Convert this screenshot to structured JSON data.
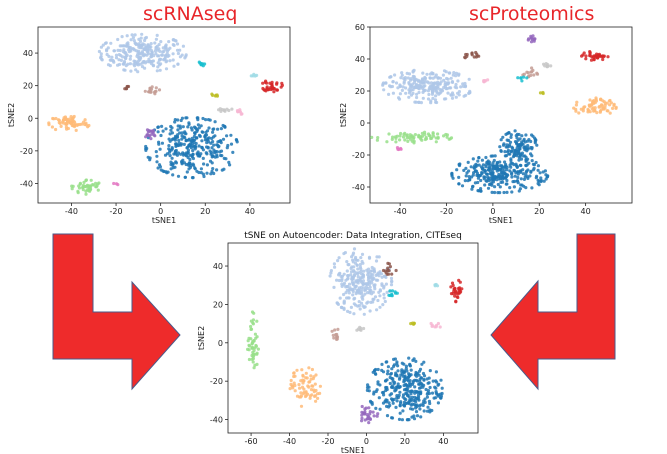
{
  "headings": {
    "left": "scRNAseq",
    "right": "scProteomics"
  },
  "chart_data": [
    {
      "type": "scatter",
      "title": "",
      "xlabel": "tSNE1",
      "ylabel": "tSNE2",
      "xlim": [
        -55,
        58
      ],
      "ylim": [
        -52,
        56
      ],
      "xticks": [
        -40,
        -20,
        0,
        20,
        40
      ],
      "yticks": [
        -40,
        -20,
        0,
        20,
        40
      ],
      "clusters": [
        {
          "color": "#aec7e8",
          "cx": -8,
          "cy": 40,
          "rx": 17,
          "ry": 10,
          "n": 260
        },
        {
          "color": "#1f77b4",
          "cx": 14,
          "cy": -18,
          "rx": 18,
          "ry": 16,
          "n": 320
        },
        {
          "color": "#ffbb78",
          "cx": -41,
          "cy": -3,
          "rx": 8,
          "ry": 4.5,
          "n": 70
        },
        {
          "color": "#98df8a",
          "cx": -33,
          "cy": -42,
          "rx": 6,
          "ry": 4,
          "n": 45
        },
        {
          "color": "#d62728",
          "cx": 50,
          "cy": 20,
          "rx": 4,
          "ry": 3.5,
          "n": 35
        },
        {
          "color": "#9467bd",
          "cx": -5,
          "cy": -10,
          "rx": 3,
          "ry": 4,
          "n": 18
        },
        {
          "color": "#c49c94",
          "cx": -5,
          "cy": 17,
          "rx": 4,
          "ry": 2,
          "n": 16
        },
        {
          "color": "#17becf",
          "cx": 18,
          "cy": 33,
          "rx": 1.5,
          "ry": 1.5,
          "n": 8
        },
        {
          "color": "#bcbd22",
          "cx": 24,
          "cy": 14,
          "rx": 1.5,
          "ry": 1,
          "n": 6
        },
        {
          "color": "#f7b6d2",
          "cx": 35,
          "cy": 4,
          "rx": 2,
          "ry": 1.5,
          "n": 8
        },
        {
          "color": "#c7c7c7",
          "cx": 29,
          "cy": 5,
          "rx": 3,
          "ry": 1,
          "n": 10
        },
        {
          "color": "#8c564b",
          "cx": -16,
          "cy": 19,
          "rx": 1.5,
          "ry": 1,
          "n": 6
        },
        {
          "color": "#9edae5",
          "cx": 42,
          "cy": 26,
          "rx": 2,
          "ry": 1,
          "n": 5
        },
        {
          "color": "#e377c2",
          "cx": -20,
          "cy": -40,
          "rx": 1,
          "ry": 1,
          "n": 3
        }
      ]
    },
    {
      "type": "scatter",
      "title": "",
      "xlabel": "tSNE1",
      "ylabel": "tSNE2",
      "xlim": [
        -53,
        60
      ],
      "ylim": [
        -50,
        60
      ],
      "xticks": [
        -40,
        -20,
        0,
        20,
        40
      ],
      "yticks": [
        -40,
        -20,
        0,
        20,
        40,
        60
      ],
      "clusters": [
        {
          "color": "#aec7e8",
          "cx": -28,
          "cy": 23,
          "rx": 17,
          "ry": 9,
          "n": 240
        },
        {
          "color": "#1f77b4",
          "cx": 3,
          "cy": -32,
          "rx": 18,
          "ry": 10,
          "n": 300
        },
        {
          "color": "#1f77b4",
          "cx": 11,
          "cy": -14,
          "rx": 7,
          "ry": 8,
          "n": 110
        },
        {
          "color": "#98df8a",
          "cx": -35,
          "cy": -9,
          "rx": 15,
          "ry": 3,
          "n": 70
        },
        {
          "color": "#ffbb78",
          "cx": 44,
          "cy": 10,
          "rx": 8,
          "ry": 5,
          "n": 70
        },
        {
          "color": "#d62728",
          "cx": 44,
          "cy": 42,
          "rx": 5,
          "ry": 2.5,
          "n": 35
        },
        {
          "color": "#8c564b",
          "cx": -9,
          "cy": 42,
          "rx": 3,
          "ry": 2,
          "n": 14
        },
        {
          "color": "#9467bd",
          "cx": 17,
          "cy": 53,
          "rx": 2,
          "ry": 2,
          "n": 12
        },
        {
          "color": "#c49c94",
          "cx": 16,
          "cy": 31,
          "rx": 3,
          "ry": 3,
          "n": 14
        },
        {
          "color": "#c7c7c7",
          "cx": 23,
          "cy": 36,
          "rx": 2,
          "ry": 1.5,
          "n": 8
        },
        {
          "color": "#17becf",
          "cx": 13,
          "cy": 28,
          "rx": 2,
          "ry": 1.5,
          "n": 6
        },
        {
          "color": "#f7b6d2",
          "cx": -2,
          "cy": 26,
          "rx": 2,
          "ry": 1.5,
          "n": 6
        },
        {
          "color": "#e377c2",
          "cx": -40,
          "cy": -16,
          "rx": 2,
          "ry": 1,
          "n": 5
        },
        {
          "color": "#bcbd22",
          "cx": 21,
          "cy": 19,
          "rx": 1,
          "ry": 1,
          "n": 3
        }
      ]
    },
    {
      "type": "scatter",
      "title": "tSNE on Autoencoder: Data Integration, CITEseq",
      "xlabel": "tSNE1",
      "ylabel": "tSNE2",
      "xlim": [
        -72,
        58
      ],
      "ylim": [
        -47,
        52
      ],
      "xticks": [
        -60,
        -40,
        -20,
        0,
        20,
        40
      ],
      "yticks": [
        -40,
        -20,
        0,
        20,
        40
      ],
      "clusters": [
        {
          "color": "#aec7e8",
          "cx": -3,
          "cy": 32,
          "rx": 14,
          "ry": 15,
          "n": 270
        },
        {
          "color": "#1f77b4",
          "cx": 20,
          "cy": -24,
          "rx": 17,
          "ry": 14,
          "n": 320
        },
        {
          "color": "#ffbb78",
          "cx": -32,
          "cy": -23,
          "rx": 7,
          "ry": 9,
          "n": 70
        },
        {
          "color": "#98df8a",
          "cx": -59,
          "cy": 0,
          "rx": 2.5,
          "ry": 14,
          "n": 50
        },
        {
          "color": "#d62728",
          "cx": 47,
          "cy": 27,
          "rx": 3,
          "ry": 5,
          "n": 30
        },
        {
          "color": "#9467bd",
          "cx": 1,
          "cy": -37,
          "rx": 5,
          "ry": 4,
          "n": 28
        },
        {
          "color": "#8c564b",
          "cx": 12,
          "cy": 38,
          "rx": 3,
          "ry": 3,
          "n": 14
        },
        {
          "color": "#17becf",
          "cx": 14,
          "cy": 26,
          "rx": 3,
          "ry": 1.5,
          "n": 10
        },
        {
          "color": "#c49c94",
          "cx": -16,
          "cy": 4,
          "rx": 2,
          "ry": 3,
          "n": 12
        },
        {
          "color": "#c7c7c7",
          "cx": -3,
          "cy": 7,
          "rx": 2,
          "ry": 1.5,
          "n": 7
        },
        {
          "color": "#bcbd22",
          "cx": 24,
          "cy": 10,
          "rx": 2,
          "ry": 1,
          "n": 6
        },
        {
          "color": "#f7b6d2",
          "cx": 36,
          "cy": 9,
          "rx": 3,
          "ry": 1.5,
          "n": 8
        },
        {
          "color": "#9edae5",
          "cx": 36,
          "cy": 30,
          "rx": 1,
          "ry": 1,
          "n": 4
        }
      ]
    }
  ],
  "arrows": {
    "fill": "#ee2b2b",
    "stroke": "#4a5a8a"
  }
}
